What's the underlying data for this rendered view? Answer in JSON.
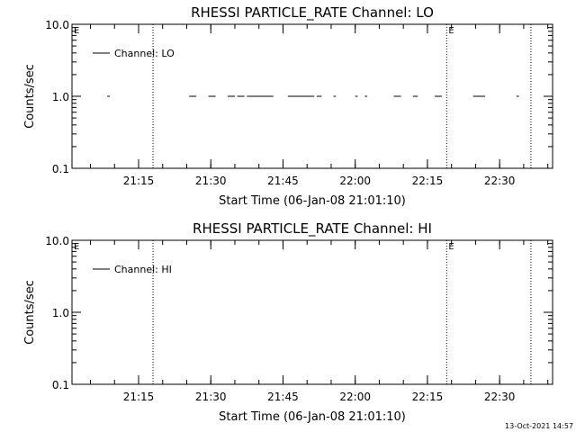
{
  "colors": {
    "background": "#ffffff",
    "foreground": "#000000"
  },
  "footer": {
    "timestamp": "13-Oct-2021 14:57"
  },
  "chart_data": [
    {
      "type": "line",
      "title": "RHESSI PARTICLE_RATE Channel: LO",
      "xlabel": "Start Time (06-Jan-08 21:01:10)",
      "ylabel": "Counts/sec",
      "yscale": "log",
      "ylim": [
        0.1,
        10.0
      ],
      "xlim": [
        "21:01:10",
        "22:41:00"
      ],
      "x_tick_labels": [
        "21:15",
        "21:30",
        "21:45",
        "22:00",
        "22:15",
        "22:30"
      ],
      "y_tick_labels": [
        "0.1",
        "1.0",
        "10.0"
      ],
      "grid": false,
      "legend": {
        "placement": "top-left",
        "entries": [
          "Channel: LO"
        ]
      },
      "event_lines": [
        "21:18:00",
        "22:19:00",
        "22:36:30"
      ],
      "event_markers": [
        {
          "label": "E",
          "at": "21:01:10"
        },
        {
          "label": "E",
          "at": "22:19:00"
        }
      ],
      "series": [
        {
          "name": "Channel: LO",
          "segments": [
            {
              "x": [
                "21:08:30",
                "21:09:00"
              ],
              "y": [
                1.0,
                1.0
              ]
            },
            {
              "x": [
                "21:25:30",
                "21:27:00"
              ],
              "y": [
                1.0,
                1.0
              ]
            },
            {
              "x": [
                "21:29:30",
                "21:31:00"
              ],
              "y": [
                1.0,
                1.0
              ]
            },
            {
              "x": [
                "21:33:30",
                "21:35:00"
              ],
              "y": [
                1.0,
                1.0
              ]
            },
            {
              "x": [
                "21:35:30",
                "21:37:00"
              ],
              "y": [
                1.0,
                1.0
              ]
            },
            {
              "x": [
                "21:37:30",
                "21:43:00"
              ],
              "y": [
                1.0,
                1.0
              ]
            },
            {
              "x": [
                "21:46:00",
                "21:51:30"
              ],
              "y": [
                1.0,
                1.0
              ]
            },
            {
              "x": [
                "21:52:00",
                "21:53:00"
              ],
              "y": [
                1.0,
                1.0
              ]
            },
            {
              "x": [
                "21:55:30",
                "21:56:00"
              ],
              "y": [
                1.0,
                1.0
              ]
            },
            {
              "x": [
                "22:00:00",
                "22:00:30"
              ],
              "y": [
                1.0,
                1.0
              ]
            },
            {
              "x": [
                "22:02:00",
                "22:02:30"
              ],
              "y": [
                1.0,
                1.0
              ]
            },
            {
              "x": [
                "22:08:00",
                "22:09:30"
              ],
              "y": [
                1.0,
                1.0
              ]
            },
            {
              "x": [
                "22:12:00",
                "22:13:00"
              ],
              "y": [
                1.0,
                1.0
              ]
            },
            {
              "x": [
                "22:16:30",
                "22:18:00"
              ],
              "y": [
                1.0,
                1.0
              ]
            },
            {
              "x": [
                "22:24:30",
                "22:27:00"
              ],
              "y": [
                1.0,
                1.0
              ]
            },
            {
              "x": [
                "22:33:30",
                "22:34:00"
              ],
              "y": [
                1.0,
                1.0
              ]
            }
          ]
        }
      ]
    },
    {
      "type": "line",
      "title": "RHESSI PARTICLE_RATE Channel: HI",
      "xlabel": "Start Time (06-Jan-08 21:01:10)",
      "ylabel": "Counts/sec",
      "yscale": "log",
      "ylim": [
        0.1,
        10.0
      ],
      "xlim": [
        "21:01:10",
        "22:41:00"
      ],
      "x_tick_labels": [
        "21:15",
        "21:30",
        "21:45",
        "22:00",
        "22:15",
        "22:30"
      ],
      "y_tick_labels": [
        "0.1",
        "1.0",
        "10.0"
      ],
      "grid": false,
      "legend": {
        "placement": "top-left",
        "entries": [
          "Channel: HI"
        ]
      },
      "event_lines": [
        "21:18:00",
        "22:19:00",
        "22:36:30"
      ],
      "event_markers": [
        {
          "label": "E",
          "at": "21:01:10"
        },
        {
          "label": "E",
          "at": "22:19:00"
        }
      ],
      "series": [
        {
          "name": "Channel: HI",
          "segments": []
        }
      ]
    }
  ]
}
